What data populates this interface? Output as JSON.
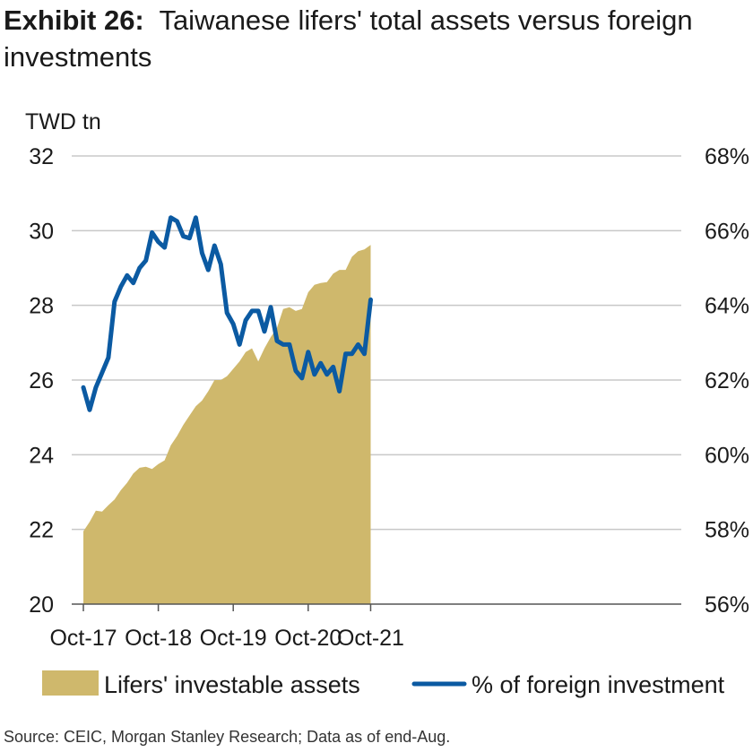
{
  "title": {
    "lead": "Exhibit 26:",
    "text": "Taiwanese lifers' total assets versus foreign investments"
  },
  "source": "Source: CEIC, Morgan Stanley Research; Data as of end-Aug.",
  "colors": {
    "area": "#cfb86c",
    "line": "#0b5aa2",
    "grid": "#c8c8c8"
  },
  "chart_data": {
    "type": "area+line",
    "left_unit": "TWD tn",
    "y_left": {
      "min": 20,
      "max": 32,
      "ticks": [
        "20",
        "22",
        "24",
        "26",
        "28",
        "30",
        "32"
      ]
    },
    "y_right": {
      "min": 56,
      "max": 68,
      "ticks": [
        "56%",
        "58%",
        "60%",
        "62%",
        "64%",
        "66%",
        "68%"
      ]
    },
    "x_ticks": [
      "Oct-17",
      "Oct-18",
      "Oct-19",
      "Oct-20",
      "Oct-21"
    ],
    "grid": true,
    "legend_position": "bottom",
    "x_months": [
      "Oct-17",
      "Nov-17",
      "Dec-17",
      "Jan-18",
      "Feb-18",
      "Mar-18",
      "Apr-18",
      "May-18",
      "Jun-18",
      "Jul-18",
      "Aug-18",
      "Sep-18",
      "Oct-18",
      "Nov-18",
      "Dec-18",
      "Jan-19",
      "Feb-19",
      "Mar-19",
      "Apr-19",
      "May-19",
      "Jun-19",
      "Jul-19",
      "Aug-19",
      "Sep-19",
      "Oct-19",
      "Nov-19",
      "Dec-19",
      "Jan-20",
      "Feb-20",
      "Mar-20",
      "Apr-20",
      "May-20",
      "Jun-20",
      "Jul-20",
      "Aug-20",
      "Sep-20",
      "Oct-20",
      "Nov-20",
      "Dec-20",
      "Jan-21",
      "Feb-21",
      "Mar-21",
      "Apr-21",
      "May-21",
      "Jun-21",
      "Jul-21",
      "Aug-21"
    ],
    "series": [
      {
        "name": "Lifers' investable assets",
        "axis": "left",
        "kind": "area",
        "values": [
          21.95,
          22.2,
          22.5,
          22.48,
          22.65,
          22.8,
          23.05,
          23.25,
          23.5,
          23.65,
          23.68,
          23.62,
          23.75,
          23.85,
          24.25,
          24.5,
          24.8,
          25.05,
          25.3,
          25.45,
          25.7,
          26.0,
          26.0,
          26.1,
          26.3,
          26.5,
          26.75,
          26.85,
          26.5,
          26.85,
          27.15,
          27.4,
          27.9,
          27.95,
          27.85,
          27.9,
          28.35,
          28.55,
          28.6,
          28.62,
          28.85,
          28.95,
          28.95,
          29.3,
          29.45,
          29.5,
          29.62
        ]
      },
      {
        "name": "% of foreign investment",
        "axis": "right",
        "kind": "line",
        "values": [
          61.8,
          61.2,
          61.8,
          62.2,
          62.6,
          64.1,
          64.5,
          64.8,
          64.6,
          65.0,
          65.2,
          65.95,
          65.7,
          65.55,
          66.35,
          66.25,
          65.85,
          65.8,
          66.35,
          65.4,
          64.95,
          65.6,
          65.1,
          63.8,
          63.5,
          62.95,
          63.6,
          63.85,
          63.85,
          63.3,
          63.95,
          63.05,
          62.95,
          62.95,
          62.25,
          62.05,
          62.75,
          62.15,
          62.45,
          62.15,
          62.35,
          61.7,
          62.7,
          62.7,
          62.95,
          62.7,
          64.15
        ]
      }
    ]
  }
}
